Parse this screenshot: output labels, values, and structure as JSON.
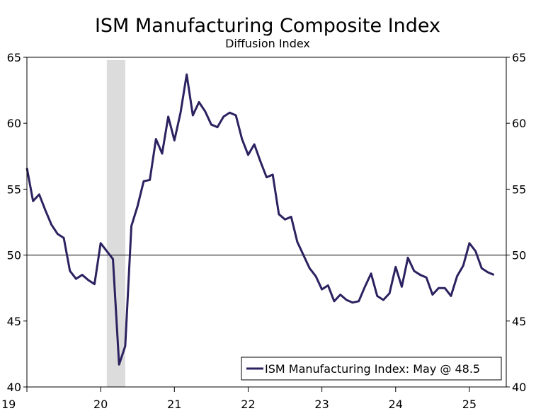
{
  "chart_data": {
    "type": "line",
    "title": "ISM Manufacturing Composite Index",
    "subtitle": "Diffusion Index",
    "xlabel": "",
    "ylabel": "",
    "ylim": [
      40,
      65
    ],
    "yticks": [
      "40",
      "45",
      "50",
      "55",
      "60",
      "65"
    ],
    "x_tick_labels": [
      "19",
      "20",
      "21",
      "22",
      "23",
      "24",
      "25"
    ],
    "x_range": [
      "2019-01",
      "2025-07"
    ],
    "reference_line": 50,
    "shaded_region": [
      "2020-02",
      "2020-04"
    ],
    "grid": false,
    "legend_position": "bottom-right",
    "series": [
      {
        "name": "ISM Manufacturing Index: May @ 48.5",
        "color": "#2b2260",
        "x": [
          "2019-01",
          "2019-02",
          "2019-03",
          "2019-04",
          "2019-05",
          "2019-06",
          "2019-07",
          "2019-08",
          "2019-09",
          "2019-10",
          "2019-11",
          "2019-12",
          "2020-01",
          "2020-02",
          "2020-03",
          "2020-04",
          "2020-05",
          "2020-06",
          "2020-07",
          "2020-08",
          "2020-09",
          "2020-10",
          "2020-11",
          "2020-12",
          "2021-01",
          "2021-02",
          "2021-03",
          "2021-04",
          "2021-05",
          "2021-06",
          "2021-07",
          "2021-08",
          "2021-09",
          "2021-10",
          "2021-11",
          "2021-12",
          "2022-01",
          "2022-02",
          "2022-03",
          "2022-04",
          "2022-05",
          "2022-06",
          "2022-07",
          "2022-08",
          "2022-09",
          "2022-10",
          "2022-11",
          "2022-12",
          "2023-01",
          "2023-02",
          "2023-03",
          "2023-04",
          "2023-05",
          "2023-06",
          "2023-07",
          "2023-08",
          "2023-09",
          "2023-10",
          "2023-11",
          "2023-12",
          "2024-01",
          "2024-02",
          "2024-03",
          "2024-04",
          "2024-05",
          "2024-06",
          "2024-07",
          "2024-08",
          "2024-09",
          "2024-10",
          "2024-11",
          "2024-12",
          "2025-01",
          "2025-02",
          "2025-03",
          "2025-04",
          "2025-05"
        ],
        "values": [
          56.6,
          54.1,
          54.6,
          53.4,
          52.3,
          51.6,
          51.3,
          48.8,
          48.2,
          48.5,
          48.1,
          47.8,
          50.9,
          50.3,
          49.7,
          41.7,
          43.1,
          52.2,
          53.7,
          55.6,
          55.7,
          58.8,
          57.7,
          60.5,
          58.7,
          60.8,
          63.7,
          60.6,
          61.6,
          60.9,
          59.9,
          59.7,
          60.5,
          60.8,
          60.6,
          58.8,
          57.6,
          58.4,
          57.1,
          55.9,
          56.1,
          53.1,
          52.7,
          52.9,
          51.0,
          50.0,
          49.0,
          48.4,
          47.4,
          47.7,
          46.5,
          47.0,
          46.6,
          46.4,
          46.5,
          47.6,
          48.6,
          46.9,
          46.6,
          47.1,
          49.1,
          47.6,
          49.8,
          48.8,
          48.5,
          48.3,
          47.0,
          47.5,
          47.5,
          46.9,
          48.4,
          49.2,
          50.9,
          50.3,
          49.0,
          48.7,
          48.5
        ]
      }
    ]
  }
}
